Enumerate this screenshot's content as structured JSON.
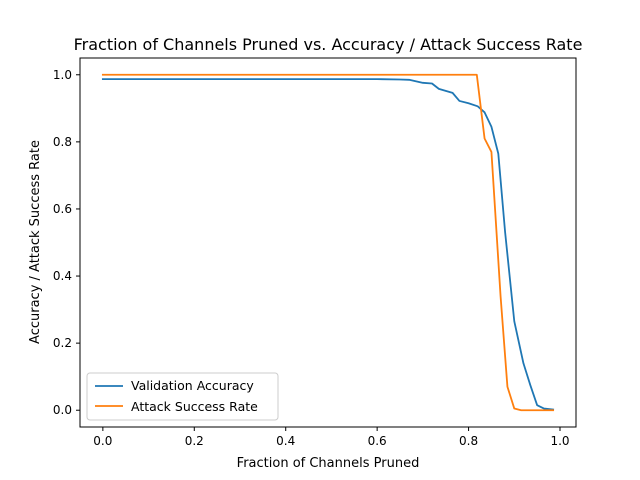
{
  "chart_data": {
    "type": "line",
    "title": "Fraction of Channels Pruned vs. Accuracy / Attack Success Rate",
    "xlabel": "Fraction of Channels Pruned",
    "ylabel": "Accuracy / Attack Success Rate",
    "xlim": [
      -0.05,
      1.035
    ],
    "ylim": [
      -0.05,
      1.05
    ],
    "xticks": [
      0.0,
      0.2,
      0.4,
      0.6,
      0.8,
      1.0
    ],
    "xtick_labels": [
      "0.0",
      "0.2",
      "0.4",
      "0.6",
      "0.8",
      "1.0"
    ],
    "yticks": [
      0.0,
      0.2,
      0.4,
      0.6,
      0.8,
      1.0
    ],
    "ytick_labels": [
      "0.0",
      "0.2",
      "0.4",
      "0.6",
      "0.8",
      "1.0"
    ],
    "grid": false,
    "legend_position": "lower-left",
    "series": [
      {
        "name": "Validation Accuracy",
        "color": "#1f77b4",
        "x": [
          0.0,
          0.1,
          0.2,
          0.3,
          0.4,
          0.5,
          0.6,
          0.65,
          0.67,
          0.7,
          0.72,
          0.735,
          0.75,
          0.765,
          0.78,
          0.8,
          0.82,
          0.835,
          0.85,
          0.865,
          0.88,
          0.9,
          0.92,
          0.935,
          0.95,
          0.965,
          0.985
        ],
        "y": [
          0.987,
          0.987,
          0.987,
          0.987,
          0.987,
          0.987,
          0.987,
          0.986,
          0.985,
          0.976,
          0.974,
          0.958,
          0.952,
          0.946,
          0.922,
          0.915,
          0.906,
          0.888,
          0.845,
          0.765,
          0.53,
          0.265,
          0.14,
          0.075,
          0.015,
          0.005,
          0.002
        ]
      },
      {
        "name": "Attack Success Rate",
        "color": "#ff7f0e",
        "x": [
          0.0,
          0.2,
          0.4,
          0.6,
          0.7,
          0.8,
          0.818,
          0.835,
          0.85,
          0.87,
          0.885,
          0.9,
          0.915,
          0.935,
          0.96,
          0.985
        ],
        "y": [
          1.0,
          1.0,
          1.0,
          1.0,
          1.0,
          1.0,
          1.0,
          0.81,
          0.77,
          0.34,
          0.07,
          0.005,
          0.0,
          0.0,
          0.0,
          0.0
        ]
      }
    ]
  }
}
